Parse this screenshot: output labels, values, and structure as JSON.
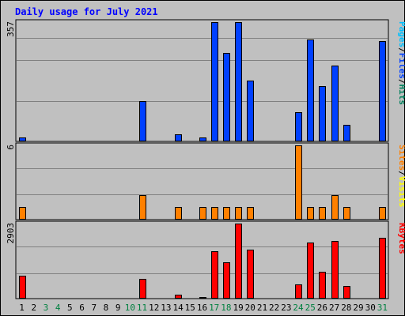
{
  "colors": {
    "background": "#c0c0c0",
    "panel": "#c0c0c0",
    "grid": "#808080",
    "title": "#0000ff",
    "hits": "#00805c",
    "files": "#0040ff",
    "pages": "#00c0ff",
    "visits": "#ffff00",
    "sites": "#ff8000",
    "kbytes": "#ff0000",
    "weekend": "#008040",
    "weekday": "#000000"
  },
  "chart_data": {
    "type": "bar",
    "title": "Daily usage for July 2021",
    "categories": [
      "1",
      "2",
      "3",
      "4",
      "5",
      "6",
      "7",
      "8",
      "9",
      "10",
      "11",
      "12",
      "13",
      "14",
      "15",
      "16",
      "17",
      "18",
      "19",
      "20",
      "21",
      "22",
      "23",
      "24",
      "25",
      "26",
      "27",
      "28",
      "29",
      "30",
      "31"
    ],
    "weekend_days": [
      "3",
      "4",
      "10",
      "11",
      "17",
      "18",
      "24",
      "25",
      "31"
    ],
    "panels": [
      {
        "max_label": "357",
        "ymax": 357,
        "legend": [
          {
            "text": "Hits",
            "color": "#00805c"
          },
          {
            "text": "/",
            "color": "#000000"
          },
          {
            "text": "Files",
            "color": "#0040ff"
          },
          {
            "text": "/",
            "color": "#000000"
          },
          {
            "text": "Pages",
            "color": "#00c0ff"
          }
        ],
        "series": [
          {
            "name": "Files",
            "color": "#0040ff",
            "values": [
              12,
              0,
              0,
              0,
              0,
              0,
              0,
              0,
              0,
              0,
              120,
              0,
              0,
              22,
              0,
              12,
              357,
              265,
              357,
              182,
              0,
              0,
              0,
              87,
              305,
              165,
              227,
              50,
              0,
              0,
              300
            ]
          }
        ]
      },
      {
        "max_label": "6",
        "ymax": 6,
        "legend": [
          {
            "text": "Visits",
            "color": "#ffff00"
          },
          {
            "text": "/",
            "color": "#000000"
          },
          {
            "text": "Sites",
            "color": "#ff8000"
          }
        ],
        "series": [
          {
            "name": "Sites",
            "color": "#ff8000",
            "values": [
              1,
              0,
              0,
              0,
              0,
              0,
              0,
              0,
              0,
              0,
              2,
              0,
              0,
              1,
              0,
              1,
              1,
              1,
              1,
              1,
              0,
              0,
              0,
              6,
              1,
              1,
              2,
              1,
              0,
              0,
              1
            ]
          }
        ]
      },
      {
        "max_label": "2903",
        "ymax": 2903,
        "legend": [
          {
            "text": "KBytes",
            "color": "#ff0000"
          }
        ],
        "series": [
          {
            "name": "KBytes",
            "color": "#ff0000",
            "values": [
              900,
              0,
              0,
              0,
              0,
              0,
              0,
              0,
              0,
              0,
              760,
              0,
              0,
              160,
              0,
              60,
              1820,
              1420,
              2903,
              1880,
              0,
              0,
              0,
              560,
              2180,
              1040,
              2240,
              480,
              0,
              0,
              2350
            ]
          }
        ]
      }
    ]
  }
}
